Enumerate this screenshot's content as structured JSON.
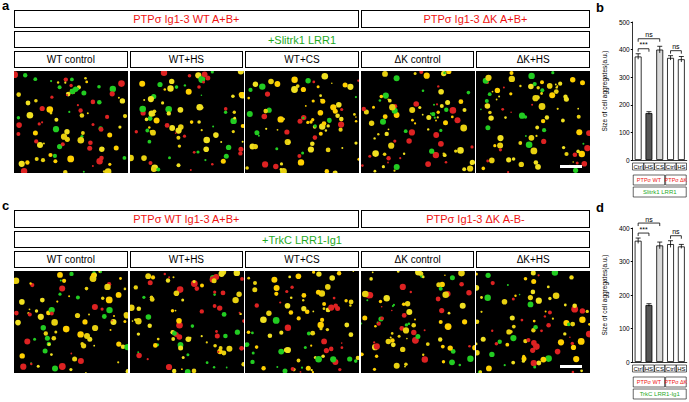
{
  "panels": [
    {
      "label": "a",
      "headers": [
        {
          "text": "PTPσ Ig1-3 WT A+B+",
          "color": "#ee1111",
          "span": 3
        },
        {
          "text": "PTPσ Ig1-3 ΔK A+B+",
          "color": "#ee1111",
          "span": 2
        }
      ],
      "construct": {
        "text": "+Slitrk1 LRR1",
        "color": "#1faa1f"
      },
      "conditions": [
        "WT control",
        "WT+HS",
        "WT+CS",
        "ΔK control",
        "ΔK+HS"
      ]
    },
    {
      "label": "c",
      "headers": [
        {
          "text": "PTPσ WT Ig1-3 A+B+",
          "color": "#ee1111",
          "span": 3
        },
        {
          "text": "PTPσ Ig1-3  ΔK A-B-",
          "color": "#ee1111",
          "span": 2
        }
      ],
      "construct": {
        "text": "+TrkC LRR1-Ig1",
        "color": "#1faa1f"
      },
      "conditions": [
        "WT control",
        "WT+HS",
        "WT+CS",
        "ΔK control",
        "ΔK+HS"
      ]
    }
  ],
  "chart_data": [
    {
      "type": "bar",
      "panel_label": "b",
      "y_label": "Size of cell aggregates(a.u.)",
      "categories": [
        "Ctrl",
        "HS",
        "CS",
        "Ctrl",
        "HS"
      ],
      "values": [
        375,
        170,
        400,
        370,
        365
      ],
      "errors": [
        10,
        5,
        12,
        8,
        10
      ],
      "colors": [
        "#ffffff",
        "#555555",
        "#d9d9d9",
        "#ffffff",
        "#ffffff"
      ],
      "ylim": [
        0,
        500
      ],
      "yticks": [
        0,
        100,
        200,
        300,
        400,
        500
      ],
      "grid": false,
      "groups": [
        {
          "label": "PTPσ WT",
          "color": "#ee1111",
          "categories": [
            0,
            1,
            2
          ]
        },
        {
          "label": "PTPσ ΔK",
          "color": "#ee1111",
          "categories": [
            3,
            4
          ]
        }
      ],
      "construct": {
        "label": "Slitrk1 LRR1",
        "color": "#1faa1f"
      },
      "significance": [
        {
          "between": [
            0,
            1
          ],
          "label": "***"
        },
        {
          "between": [
            0,
            2
          ],
          "label": "ns"
        },
        {
          "between": [
            3,
            4
          ],
          "label": "ns"
        }
      ]
    },
    {
      "type": "bar",
      "panel_label": "d",
      "y_label": "Size of cell aggregates(a.u.)",
      "categories": [
        "Ctrl",
        "HS",
        "CS",
        "Ctrl",
        "HS"
      ],
      "values": [
        362,
        170,
        348,
        352,
        345
      ],
      "errors": [
        8,
        4,
        10,
        10,
        6
      ],
      "colors": [
        "#ffffff",
        "#555555",
        "#d9d9d9",
        "#ffffff",
        "#ffffff"
      ],
      "ylim": [
        0,
        400
      ],
      "yticks": [
        0,
        100,
        200,
        300,
        400
      ],
      "grid": false,
      "groups": [
        {
          "label": "PTPσ WT",
          "color": "#ee1111",
          "categories": [
            0,
            1,
            2
          ]
        },
        {
          "label": "PTPσ ΔK",
          "color": "#ee1111",
          "categories": [
            3,
            4
          ]
        }
      ],
      "construct": {
        "label": "TrkC LRR1-Ig1",
        "color": "#1faa1f"
      },
      "significance": [
        {
          "between": [
            0,
            1
          ],
          "label": "***"
        },
        {
          "between": [
            0,
            2
          ],
          "label": "ns"
        },
        {
          "between": [
            3,
            4
          ],
          "label": "ns"
        }
      ]
    }
  ]
}
